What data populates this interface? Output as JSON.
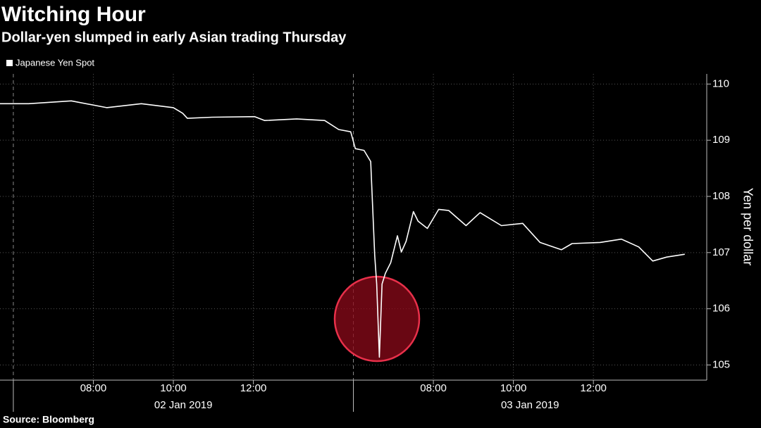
{
  "chart_data": {
    "type": "line",
    "title": "Witching Hour",
    "subtitle": "Dollar-yen slumped in early Asian trading Thursday",
    "y_axis_label": "Yen per dollar",
    "source": "Source: Bloomberg",
    "x": [
      "2019-01-02T05:40",
      "2019-01-02T06:23",
      "2019-01-02T07:27",
      "2019-01-02T08:20",
      "2019-01-02T09:12",
      "2019-01-02T10:00",
      "2019-01-02T10:14",
      "2019-01-02T10:21",
      "2019-01-02T10:58",
      "2019-01-02T12:02",
      "2019-01-02T12:17",
      "2019-01-02T13:05",
      "2019-01-02T13:47",
      "2019-01-02T14:08",
      "2019-01-02T14:26",
      "2019-01-03T06:03",
      "2019-01-03T06:16",
      "2019-01-03T06:26",
      "2019-01-03T06:32",
      "2019-01-03T06:35",
      "2019-01-03T06:39",
      "2019-01-03T06:43",
      "2019-01-03T06:48",
      "2019-01-03T06:56",
      "2019-01-03T07:06",
      "2019-01-03T07:12",
      "2019-01-03T07:19",
      "2019-01-03T07:30",
      "2019-01-03T07:37",
      "2019-01-03T07:51",
      "2019-01-03T08:08",
      "2019-01-03T08:23",
      "2019-01-03T08:49",
      "2019-01-03T09:10",
      "2019-01-03T09:42",
      "2019-01-03T10:14",
      "2019-01-03T10:40",
      "2019-01-03T11:12",
      "2019-01-03T11:28",
      "2019-01-03T12:10",
      "2019-01-03T12:42",
      "2019-01-03T13:08",
      "2019-01-03T13:29",
      "2019-01-03T13:50",
      "2019-01-03T14:17"
    ],
    "series": [
      {
        "name": "Japanese Yen Spot",
        "color": "#ffffff",
        "values": [
          109.65,
          109.65,
          109.7,
          109.58,
          109.65,
          109.58,
          109.48,
          109.39,
          109.41,
          109.42,
          109.35,
          109.38,
          109.35,
          109.19,
          109.15,
          108.85,
          108.82,
          108.62,
          106.95,
          106.44,
          105.14,
          106.44,
          106.63,
          106.82,
          107.3,
          107.01,
          107.2,
          107.73,
          107.56,
          107.43,
          107.77,
          107.75,
          107.48,
          107.71,
          107.48,
          107.52,
          107.18,
          107.05,
          107.16,
          107.18,
          107.24,
          107.1,
          106.85,
          106.92,
          106.97
        ]
      }
    ],
    "xlim": [
      "2019-01-02T05:40",
      "2019-01-03T14:50"
    ],
    "sessions": [
      {
        "start": "2019-01-02T06:00",
        "end": "2019-01-02T14:30",
        "label": "02 Jan 2019"
      },
      {
        "start": "2019-01-03T06:00",
        "end": "2019-01-03T14:50",
        "label": "03 Jan 2019"
      }
    ],
    "xticks": [
      {
        "value": "2019-01-02T08:00",
        "label": "08:00"
      },
      {
        "value": "2019-01-02T10:00",
        "label": "10:00"
      },
      {
        "value": "2019-01-02T12:00",
        "label": "12:00"
      },
      {
        "value": "2019-01-03T08:00",
        "label": "08:00"
      },
      {
        "value": "2019-01-03T10:00",
        "label": "10:00"
      },
      {
        "value": "2019-01-03T12:00",
        "label": "12:00"
      }
    ],
    "ylim": [
      104.73,
      110.18
    ],
    "yticks": [
      105,
      106,
      107,
      108,
      109,
      110
    ],
    "grid": true
  }
}
